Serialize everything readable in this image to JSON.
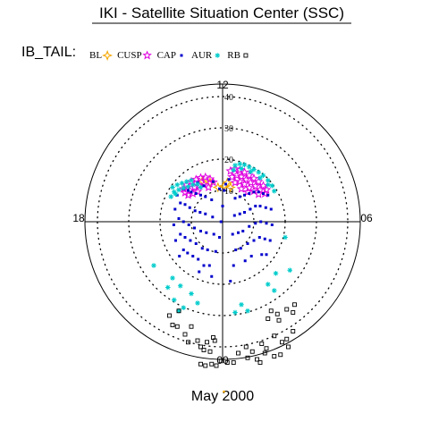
{
  "header": {
    "title": "IKI - Satellite Situation Center (SSC)",
    "region_label": "IB_TAIL:",
    "footer": "May 2000"
  },
  "chart_data": {
    "type": "scatter",
    "coordinate_system": "polar",
    "radial_ticks": [
      10,
      20,
      30,
      40
    ],
    "rlim": [
      0,
      44
    ],
    "angle_labels": [
      "12",
      "06",
      "00",
      "18"
    ],
    "grid": true,
    "legend_placement": "top-left",
    "series": [
      {
        "name": "BL",
        "marker": "diamond-star",
        "color": "#f5a800",
        "points": [
          [
            -6.5,
            13.0
          ],
          [
            -4.0,
            12.5
          ],
          [
            -1.5,
            11.0
          ],
          [
            0.5,
            11.5
          ],
          [
            1.5,
            12.5
          ],
          [
            2.5,
            11.0
          ]
        ]
      },
      {
        "name": "CUSP",
        "marker": "star",
        "color": "#e000e0",
        "points": [
          [
            -12.5,
            10.5
          ],
          [
            -11.5,
            11.8
          ],
          [
            -10.0,
            12.8
          ],
          [
            -8.5,
            13.5
          ],
          [
            -7.0,
            14.0
          ],
          [
            -5.5,
            14.2
          ],
          [
            -4.0,
            13.6
          ],
          [
            -3.0,
            12.6
          ],
          [
            -12.0,
            9.3
          ],
          [
            -10.5,
            10.0
          ],
          [
            -9.0,
            11.0
          ],
          [
            -7.5,
            11.5
          ],
          [
            -6.0,
            11.8
          ],
          [
            -4.5,
            11.0
          ],
          [
            -11.0,
            8.5
          ],
          [
            -9.5,
            9.0
          ],
          [
            -8.0,
            9.6
          ],
          [
            2.5,
            16.2
          ],
          [
            4.0,
            16.8
          ],
          [
            5.5,
            16.5
          ],
          [
            7.0,
            15.8
          ],
          [
            8.5,
            14.8
          ],
          [
            10.0,
            13.8
          ],
          [
            11.5,
            12.8
          ],
          [
            13.0,
            11.5
          ],
          [
            14.0,
            10.2
          ],
          [
            3.0,
            14.3
          ],
          [
            4.5,
            14.8
          ],
          [
            6.0,
            14.4
          ],
          [
            7.5,
            13.5
          ],
          [
            9.0,
            12.5
          ],
          [
            10.5,
            11.4
          ],
          [
            12.0,
            10.2
          ],
          [
            13.5,
            9.0
          ],
          [
            4.0,
            12.5
          ],
          [
            5.5,
            12.8
          ],
          [
            7.0,
            12.0
          ],
          [
            8.5,
            10.8
          ],
          [
            10.0,
            9.8
          ],
          [
            11.5,
            8.8
          ],
          [
            6.0,
            10.5
          ],
          [
            8.0,
            9.5
          ]
        ]
      },
      {
        "name": "CAP",
        "marker": "dot",
        "color": "#0000cc",
        "points": [
          [
            -8.0,
            12.5
          ],
          [
            -6.0,
            11.5
          ],
          [
            -3.0,
            12.8
          ],
          [
            -1.0,
            10.5
          ],
          [
            2.0,
            13.5
          ],
          [
            1.0,
            12.0
          ],
          [
            -14.5,
            8.5
          ],
          [
            -15.2,
            4.0
          ],
          [
            -15.6,
            -1.0
          ],
          [
            -15.0,
            -6.0
          ],
          [
            -13.8,
            -11.0
          ],
          [
            -12.5,
            10.5
          ],
          [
            -13.5,
            6.0
          ],
          [
            -14.0,
            1.0
          ],
          [
            -13.5,
            -4.0
          ],
          [
            -12.5,
            -9.0
          ],
          [
            -11.0,
            10.0
          ],
          [
            -12.0,
            5.5
          ],
          [
            -12.5,
            0.0
          ],
          [
            -12.0,
            -5.0
          ],
          [
            -11.2,
            -10.0
          ],
          [
            -10.0,
            9.5
          ],
          [
            -10.5,
            4.5
          ],
          [
            -10.8,
            -1.0
          ],
          [
            -10.3,
            -6.0
          ],
          [
            -9.5,
            -11.0
          ],
          [
            -8.5,
            9.0
          ],
          [
            -8.8,
            3.5
          ],
          [
            -9.0,
            -2.0
          ],
          [
            -8.5,
            -7.0
          ],
          [
            -7.8,
            -12.0
          ],
          [
            -7.5,
            -16.0
          ],
          [
            -7.0,
            8.5
          ],
          [
            -7.2,
            3.0
          ],
          [
            -7.0,
            -3.0
          ],
          [
            -6.5,
            -8.5
          ],
          [
            -6.0,
            -14.0
          ],
          [
            -5.5,
            8.0
          ],
          [
            -5.5,
            2.5
          ],
          [
            -5.2,
            -3.5
          ],
          [
            -4.8,
            -9.0
          ],
          [
            -4.2,
            -14.0
          ],
          [
            -3.5,
            -17.5
          ],
          [
            -3.5,
            7.0
          ],
          [
            -3.2,
            1.5
          ],
          [
            -2.8,
            -4.0
          ],
          [
            -2.2,
            -9.5
          ],
          [
            14.5,
            8.5
          ],
          [
            15.5,
            4.0
          ],
          [
            15.8,
            -1.0
          ],
          [
            15.2,
            -6.0
          ],
          [
            14.0,
            -10.5
          ],
          [
            13.0,
            9.0
          ],
          [
            13.8,
            4.5
          ],
          [
            14.0,
            -0.5
          ],
          [
            13.5,
            -5.5
          ],
          [
            12.5,
            -10.5
          ],
          [
            11.5,
            9.5
          ],
          [
            12.0,
            5.0
          ],
          [
            12.2,
            0.0
          ],
          [
            11.8,
            -5.0
          ],
          [
            10.0,
            9.5
          ],
          [
            10.5,
            5.0
          ],
          [
            10.5,
            -0.5
          ],
          [
            10.0,
            -6.0
          ],
          [
            9.2,
            -11.0
          ],
          [
            8.5,
            9.0
          ],
          [
            8.8,
            4.0
          ],
          [
            8.5,
            -1.5
          ],
          [
            8.0,
            -7.0
          ],
          [
            7.2,
            -12.5
          ],
          [
            7.0,
            8.5
          ],
          [
            7.0,
            3.0
          ],
          [
            6.5,
            -3.0
          ],
          [
            5.8,
            -8.5
          ],
          [
            5.5,
            8.0
          ],
          [
            5.5,
            2.5
          ],
          [
            5.0,
            -3.5
          ],
          [
            4.2,
            -9.0
          ],
          [
            3.5,
            -14.0
          ],
          [
            2.5,
            -19.0
          ],
          [
            4.0,
            7.5
          ],
          [
            3.8,
            2.0
          ],
          [
            3.2,
            -4.0
          ],
          [
            0.5,
            10.0
          ],
          [
            0.0,
            5.0
          ],
          [
            -0.5,
            0.0
          ],
          [
            -1.0,
            -5.0
          ]
        ]
      },
      {
        "name": "AUR",
        "marker": "asterisk",
        "color": "#00cccc",
        "points": [
          [
            -16.0,
            11.0
          ],
          [
            -14.5,
            11.8
          ],
          [
            -13.0,
            12.3
          ],
          [
            -11.5,
            12.8
          ],
          [
            -10.0,
            13.2
          ],
          [
            -15.5,
            9.5
          ],
          [
            -14.0,
            10.2
          ],
          [
            -12.5,
            10.8
          ],
          [
            -11.0,
            11.2
          ],
          [
            -9.5,
            11.8
          ],
          [
            -8.0,
            12.0
          ],
          [
            -16.5,
            8.0
          ],
          [
            -15.0,
            8.8
          ],
          [
            -7.0,
            11.0
          ],
          [
            4.0,
            18.0
          ],
          [
            5.5,
            18.5
          ],
          [
            7.0,
            18.2
          ],
          [
            8.5,
            17.5
          ],
          [
            10.0,
            16.7
          ],
          [
            11.5,
            15.8
          ],
          [
            13.0,
            14.8
          ],
          [
            14.5,
            13.2
          ],
          [
            15.8,
            11.5
          ],
          [
            16.5,
            9.8
          ],
          [
            6.0,
            17.0
          ],
          [
            9.0,
            16.0
          ],
          [
            12.0,
            14.0
          ],
          [
            14.5,
            11.8
          ],
          [
            3.5,
            16.5
          ],
          [
            -22.0,
            -14.0
          ],
          [
            -16.0,
            -18.0
          ],
          [
            -17.5,
            -21.0
          ],
          [
            -13.5,
            -20.5
          ],
          [
            -15.5,
            -25.0
          ],
          [
            -8.0,
            -26.0
          ],
          [
            -10.0,
            -23.0
          ],
          [
            -12.5,
            -27.5
          ],
          [
            -14.0,
            -28.5
          ],
          [
            20.0,
            -5.0
          ],
          [
            21.5,
            -15.5
          ],
          [
            17.0,
            -16.5
          ],
          [
            14.5,
            -20.0
          ],
          [
            16.5,
            -22.0
          ],
          [
            6.0,
            -26.5
          ],
          [
            8.0,
            -28.5
          ],
          [
            4.0,
            -29.0
          ]
        ]
      },
      {
        "name": "RB",
        "marker": "open-square",
        "color": "#000000",
        "points": [
          [
            -14.0,
            -28.5
          ],
          [
            -17.0,
            -30.0
          ],
          [
            -16.0,
            -33.0
          ],
          [
            -10.0,
            -33.5
          ],
          [
            -11.0,
            -38.5
          ],
          [
            -7.0,
            -40.0
          ],
          [
            -8.0,
            -38.0
          ],
          [
            -5.0,
            -38.5
          ],
          [
            -12.0,
            -36.0
          ],
          [
            -6.0,
            -41.0
          ],
          [
            -4.0,
            -41.5
          ],
          [
            -3.0,
            -37.0
          ],
          [
            -2.5,
            -38.0
          ],
          [
            -14.5,
            -33.5
          ],
          [
            -7.0,
            -45.5
          ],
          [
            -5.5,
            -46.0
          ],
          [
            -3.5,
            -45.5
          ],
          [
            -2.0,
            -46.0
          ],
          [
            -0.5,
            -44.5
          ],
          [
            15.5,
            -28.5
          ],
          [
            17.5,
            -29.5
          ],
          [
            20.5,
            -28.0
          ],
          [
            22.5,
            -29.0
          ],
          [
            23.0,
            -26.5
          ],
          [
            18.0,
            -31.5
          ],
          [
            14.5,
            -31.0
          ],
          [
            22.5,
            -35.0
          ],
          [
            16.5,
            -36.5
          ],
          [
            19.0,
            -38.5
          ],
          [
            21.0,
            -40.0
          ],
          [
            12.5,
            -39.0
          ],
          [
            13.5,
            -42.0
          ],
          [
            16.5,
            -43.0
          ],
          [
            11.0,
            -44.0
          ],
          [
            9.5,
            -41.5
          ],
          [
            7.5,
            -40.0
          ],
          [
            5.0,
            -42.0
          ],
          [
            3.5,
            -45.0
          ],
          [
            1.5,
            -45.0
          ],
          [
            8.0,
            -43.5
          ],
          [
            12.0,
            -45.0
          ],
          [
            18.5,
            -42.5
          ],
          [
            20.5,
            -37.5
          ],
          [
            14.0,
            -40.5
          ]
        ]
      }
    ]
  }
}
